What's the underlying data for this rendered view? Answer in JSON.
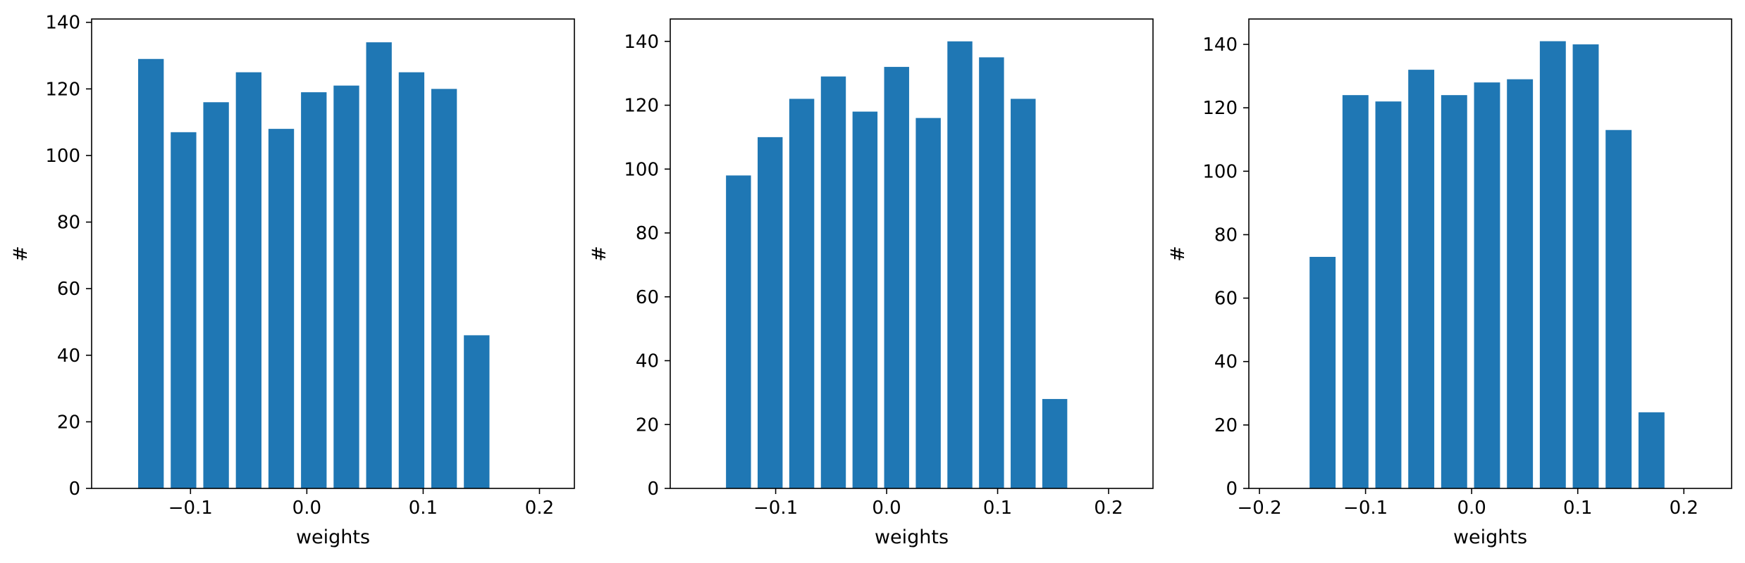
{
  "figure": {
    "background": "#ffffff",
    "bar_color": "#1f77b4"
  },
  "chart_data": [
    {
      "type": "bar",
      "title": "",
      "xlabel": "weights",
      "ylabel": "#",
      "bar_width": 0.022,
      "x": [
        -0.134,
        -0.106,
        -0.078,
        -0.05,
        -0.022,
        0.006,
        0.034,
        0.062,
        0.09,
        0.118,
        0.146
      ],
      "values": [
        129,
        107,
        116,
        125,
        108,
        119,
        121,
        134,
        125,
        120,
        46
      ],
      "xlim": [
        -0.185,
        0.23
      ],
      "ylim": [
        0,
        141
      ],
      "xticks": [
        -0.1,
        0.0,
        0.1,
        0.2
      ],
      "xtick_labels": [
        "−0.1",
        "0.0",
        "0.1",
        "0.2"
      ],
      "yticks": [
        0,
        20,
        40,
        60,
        80,
        100,
        120,
        140
      ],
      "ytick_labels": [
        "0",
        "20",
        "40",
        "60",
        "80",
        "100",
        "120",
        "140"
      ],
      "grid": false,
      "legend": "none"
    },
    {
      "type": "bar",
      "title": "",
      "xlabel": "weights",
      "ylabel": "#",
      "bar_width": 0.0225,
      "x": [
        -0.1335,
        -0.105,
        -0.0765,
        -0.048,
        -0.0195,
        0.009,
        0.0375,
        0.066,
        0.0945,
        0.123,
        0.1515
      ],
      "values": [
        98,
        110,
        122,
        129,
        118,
        132,
        116,
        140,
        135,
        122,
        28
      ],
      "xlim": [
        -0.195,
        0.24
      ],
      "ylim": [
        0,
        147
      ],
      "xticks": [
        -0.1,
        0.0,
        0.1,
        0.2
      ],
      "xtick_labels": [
        "−0.1",
        "0.0",
        "0.1",
        "0.2"
      ],
      "yticks": [
        0,
        20,
        40,
        60,
        80,
        100,
        120,
        140
      ],
      "ytick_labels": [
        "0",
        "20",
        "40",
        "60",
        "80",
        "100",
        "120",
        "140"
      ],
      "grid": false,
      "legend": "none"
    },
    {
      "type": "bar",
      "title": "",
      "xlabel": "weights",
      "ylabel": "#",
      "bar_width": 0.0245,
      "x": [
        -0.1405,
        -0.1095,
        -0.0785,
        -0.0475,
        -0.0165,
        0.0145,
        0.0455,
        0.0765,
        0.1075,
        0.1385,
        0.1695
      ],
      "values": [
        73,
        124,
        122,
        132,
        124,
        128,
        129,
        141,
        140,
        113,
        24
      ],
      "xlim": [
        -0.21,
        0.245
      ],
      "ylim": [
        0,
        148
      ],
      "xticks": [
        -0.2,
        -0.1,
        0.0,
        0.1,
        0.2
      ],
      "xtick_labels": [
        "−0.2",
        "−0.1",
        "0.0",
        "0.1",
        "0.2"
      ],
      "yticks": [
        0,
        20,
        40,
        60,
        80,
        100,
        120,
        140
      ],
      "ytick_labels": [
        "0",
        "20",
        "40",
        "60",
        "80",
        "100",
        "120",
        "140"
      ],
      "grid": false,
      "legend": "none"
    }
  ]
}
